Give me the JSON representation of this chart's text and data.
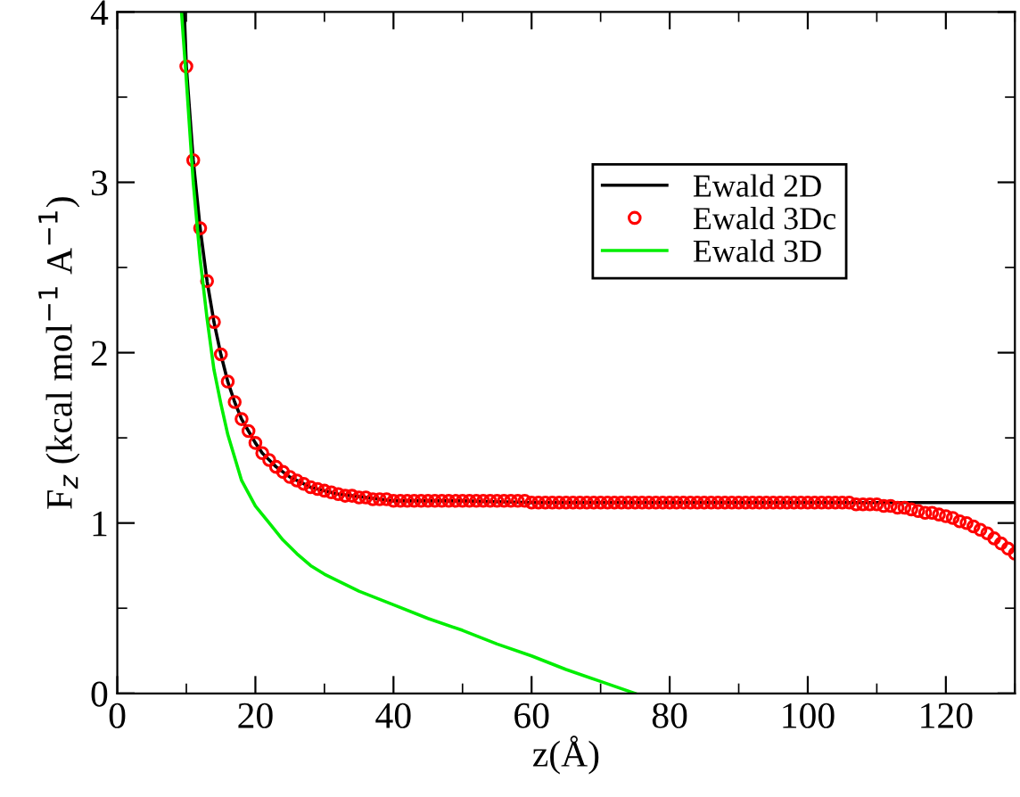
{
  "chart_data": {
    "type": "line",
    "xlabel": "z(Å)",
    "ylabel": "F$_{z}$ (kcal mol$^{−1}$ A$^{−1}$)",
    "xlim": [
      0,
      130
    ],
    "ylim": [
      0,
      4
    ],
    "xticks": [
      0,
      20,
      40,
      60,
      80,
      100,
      120
    ],
    "yticks": [
      0,
      1,
      2,
      3,
      4
    ],
    "grid": false,
    "legend": "top right",
    "series": [
      {
        "name": "Ewald 2D",
        "color": "#000000",
        "marker": "none",
        "x": [
          9.7,
          10,
          11,
          12,
          13,
          14,
          15,
          16,
          17,
          18,
          19,
          20,
          21,
          22,
          23,
          24,
          25,
          26,
          27,
          28,
          29,
          30,
          32,
          34,
          36,
          38,
          40,
          50,
          60,
          70,
          80,
          90,
          100,
          110,
          120,
          130
        ],
        "values": [
          4.0,
          3.68,
          3.13,
          2.73,
          2.42,
          2.18,
          1.99,
          1.83,
          1.71,
          1.61,
          1.54,
          1.47,
          1.41,
          1.37,
          1.33,
          1.3,
          1.27,
          1.25,
          1.23,
          1.21,
          1.2,
          1.19,
          1.17,
          1.16,
          1.15,
          1.14,
          1.13,
          1.13,
          1.12,
          1.12,
          1.12,
          1.12,
          1.12,
          1.12,
          1.12,
          1.12
        ]
      },
      {
        "name": "Ewald 3Dc",
        "color": "#ff0000",
        "type": "scatter",
        "marker": "circle",
        "x": [
          10,
          11,
          12,
          13,
          14,
          15,
          16,
          17,
          18,
          19,
          20,
          21,
          22,
          23,
          24,
          25,
          26,
          27,
          28,
          29,
          30,
          31,
          32,
          33,
          34,
          35,
          36,
          37,
          38,
          39,
          40,
          41,
          42,
          43,
          44,
          45,
          46,
          47,
          48,
          49,
          50,
          51,
          52,
          53,
          54,
          55,
          56,
          57,
          58,
          59,
          60,
          61,
          62,
          63,
          64,
          65,
          66,
          67,
          68,
          69,
          70,
          71,
          72,
          73,
          74,
          75,
          76,
          77,
          78,
          79,
          80,
          81,
          82,
          83,
          84,
          85,
          86,
          87,
          88,
          89,
          90,
          91,
          92,
          93,
          94,
          95,
          96,
          97,
          98,
          99,
          100,
          101,
          102,
          103,
          104,
          105,
          106,
          107,
          108,
          109,
          110,
          111,
          112,
          113,
          114,
          115,
          116,
          117,
          118,
          119,
          120,
          121,
          122,
          123,
          124,
          125,
          126,
          127,
          128,
          129,
          130
        ],
        "values": [
          3.68,
          3.13,
          2.73,
          2.42,
          2.18,
          1.99,
          1.83,
          1.71,
          1.61,
          1.54,
          1.47,
          1.41,
          1.37,
          1.33,
          1.3,
          1.27,
          1.25,
          1.23,
          1.21,
          1.2,
          1.19,
          1.18,
          1.17,
          1.16,
          1.16,
          1.15,
          1.15,
          1.14,
          1.14,
          1.14,
          1.13,
          1.13,
          1.13,
          1.13,
          1.13,
          1.13,
          1.13,
          1.13,
          1.13,
          1.13,
          1.13,
          1.13,
          1.13,
          1.13,
          1.13,
          1.13,
          1.13,
          1.13,
          1.13,
          1.13,
          1.12,
          1.12,
          1.12,
          1.12,
          1.12,
          1.12,
          1.12,
          1.12,
          1.12,
          1.12,
          1.12,
          1.12,
          1.12,
          1.12,
          1.12,
          1.12,
          1.12,
          1.12,
          1.12,
          1.12,
          1.12,
          1.12,
          1.12,
          1.12,
          1.12,
          1.12,
          1.12,
          1.12,
          1.12,
          1.12,
          1.12,
          1.12,
          1.12,
          1.12,
          1.12,
          1.12,
          1.12,
          1.12,
          1.12,
          1.12,
          1.12,
          1.12,
          1.12,
          1.12,
          1.12,
          1.12,
          1.12,
          1.11,
          1.11,
          1.11,
          1.11,
          1.1,
          1.1,
          1.09,
          1.09,
          1.08,
          1.07,
          1.06,
          1.06,
          1.05,
          1.04,
          1.03,
          1.01,
          1.0,
          0.98,
          0.96,
          0.94,
          0.91,
          0.88,
          0.85,
          0.82
        ]
      },
      {
        "name": "Ewald 3D",
        "color": "#00ee00",
        "marker": "none",
        "x": [
          9.3,
          10,
          11,
          12,
          13,
          14,
          15,
          16,
          18,
          20,
          22,
          24,
          26,
          28,
          30,
          35,
          40,
          45,
          50,
          55,
          60,
          65,
          70,
          75
        ],
        "values": [
          4.0,
          3.6,
          3.0,
          2.55,
          2.2,
          1.9,
          1.7,
          1.52,
          1.25,
          1.1,
          1.0,
          0.9,
          0.82,
          0.75,
          0.7,
          0.6,
          0.52,
          0.44,
          0.37,
          0.29,
          0.22,
          0.14,
          0.07,
          0.0
        ]
      }
    ]
  }
}
